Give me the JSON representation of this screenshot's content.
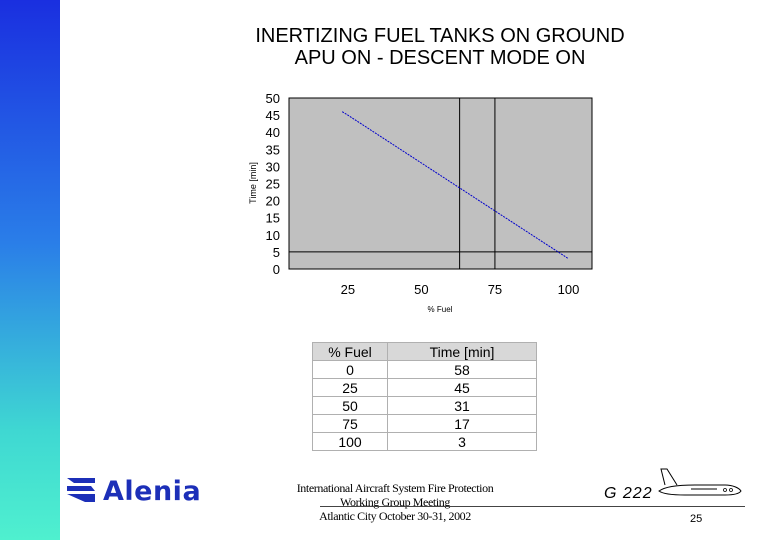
{
  "title_line1": "INERTIZING FUEL TANKS  ON GROUND",
  "title_line2": "APU ON - DESCENT MODE ON",
  "chart_data": {
    "type": "line",
    "x": [
      0,
      25,
      50,
      75,
      100
    ],
    "y": [
      58,
      45,
      31,
      17,
      3
    ],
    "xlabel": "% Fuel",
    "ylabel": "Time [min]",
    "xticks": [
      25,
      50,
      75,
      100
    ],
    "yticks": [
      0,
      5,
      10,
      15,
      20,
      25,
      30,
      35,
      40,
      45,
      50
    ],
    "ylim": [
      0,
      50
    ],
    "plot_background": "#c0c0c0",
    "line_color": "#0000cc",
    "reference_lines": {
      "vertical_x": [
        63,
        75
      ],
      "horizontal_y": [
        5
      ]
    },
    "grid": false
  },
  "table": {
    "headers": [
      "% Fuel",
      "Time [min]"
    ],
    "rows": [
      [
        "0",
        "58"
      ],
      [
        "25",
        "45"
      ],
      [
        "50",
        "31"
      ],
      [
        "75",
        "17"
      ],
      [
        "100",
        "3"
      ]
    ]
  },
  "logo_text": "Alenia",
  "footer": {
    "line1": "International Aircraft System Fire Protection",
    "line2": "Working Group Meeting",
    "line3": "Atlantic City October 30-31, 2002"
  },
  "aircraft_code": "G 222",
  "page_number": "25",
  "colors": {
    "sidebar_top": "#1a2fe0",
    "sidebar_bottom": "#4ff0cf",
    "logo": "#1c2fb8"
  }
}
